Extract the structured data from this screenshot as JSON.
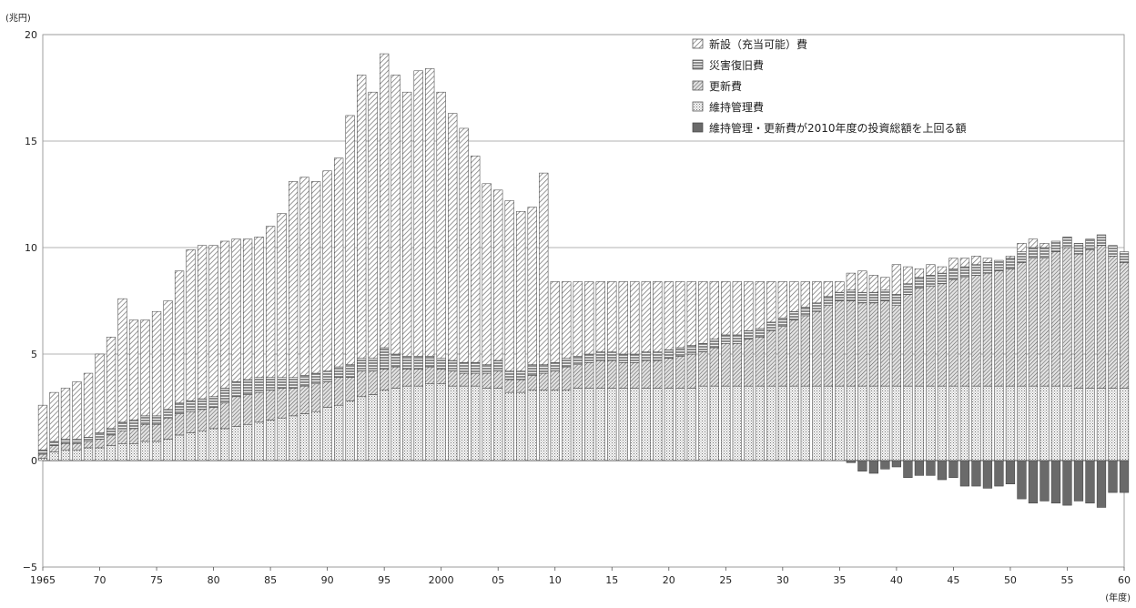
{
  "chart_data": {
    "type": "bar",
    "stacked": true,
    "ylabel": "(兆円)",
    "xlabel": "(年度)",
    "ylim": [
      -5,
      20
    ],
    "yticks": [
      -5,
      0,
      5,
      10,
      15,
      20
    ],
    "ytick_labels": [
      "−5",
      "0",
      "5",
      "10",
      "15",
      "20"
    ],
    "x_start": 1965,
    "x_end": 2060,
    "xtick_years": [
      1965,
      1970,
      1975,
      1980,
      1985,
      1990,
      1995,
      2000,
      2005,
      2010,
      2015,
      2020,
      2025,
      2030,
      2035,
      2040,
      2045,
      2050,
      2055,
      2060
    ],
    "xtick_labels": [
      "1965",
      "70",
      "75",
      "80",
      "85",
      "90",
      "95",
      "2000",
      "05",
      "10",
      "15",
      "20",
      "25",
      "30",
      "35",
      "40",
      "45",
      "50",
      "55",
      "60"
    ],
    "grid": "horizontal",
    "legend_position": "top-right",
    "legend": [
      "新設（充当可能）費",
      "災害復旧費",
      "更新費",
      "維持管理費",
      "維持管理・更新費が2010年度の投資総額を上回る額"
    ],
    "totals": [
      2.6,
      3.2,
      3.4,
      3.7,
      4.1,
      5.0,
      5.8,
      7.6,
      6.6,
      6.6,
      7.0,
      7.5,
      8.9,
      9.9,
      10.1,
      10.1,
      10.3,
      10.4,
      10.4,
      10.5,
      11.0,
      11.6,
      13.1,
      13.3,
      13.1,
      13.6,
      14.2,
      16.2,
      18.1,
      17.3,
      19.1,
      18.1,
      17.3,
      18.3,
      18.4,
      17.3,
      16.3,
      15.6,
      14.3,
      13.0,
      12.7,
      12.2,
      11.7,
      11.9,
      13.5,
      8.4,
      8.4,
      8.4,
      8.4,
      8.4,
      8.4,
      8.4,
      8.4,
      8.4,
      8.4,
      8.4,
      8.4,
      8.4,
      8.4,
      8.4,
      8.4,
      8.4,
      8.4,
      8.4,
      8.4,
      8.4,
      8.4,
      8.4,
      8.4,
      8.4,
      8.4,
      8.8,
      8.9,
      8.7,
      8.6,
      9.2,
      9.1,
      9.0,
      9.2,
      9.1,
      9.5,
      9.5,
      9.6,
      9.5,
      9.4,
      9.6,
      10.2,
      10.4,
      10.2,
      10.3,
      10.5,
      10.1,
      10.4,
      10.5,
      9.9,
      9.3
    ],
    "maintenance": [
      0.1,
      0.4,
      0.5,
      0.5,
      0.6,
      0.6,
      0.7,
      0.8,
      0.8,
      0.9,
      0.9,
      1.0,
      1.2,
      1.3,
      1.4,
      1.5,
      1.5,
      1.6,
      1.7,
      1.8,
      1.9,
      2.0,
      2.1,
      2.2,
      2.3,
      2.5,
      2.6,
      2.8,
      3.0,
      3.1,
      3.3,
      3.4,
      3.5,
      3.5,
      3.6,
      3.6,
      3.5,
      3.5,
      3.5,
      3.4,
      3.4,
      3.2,
      3.2,
      3.3,
      3.3,
      3.3,
      3.3,
      3.4,
      3.4,
      3.4,
      3.4,
      3.4,
      3.4,
      3.4,
      3.4,
      3.4,
      3.4,
      3.4,
      3.5,
      3.5,
      3.5,
      3.5,
      3.5,
      3.5,
      3.5,
      3.5,
      3.5,
      3.5,
      3.5,
      3.5,
      3.5,
      3.5,
      3.5,
      3.5,
      3.5,
      3.5,
      3.5,
      3.5,
      3.5,
      3.5,
      3.5,
      3.5,
      3.5,
      3.5,
      3.5,
      3.5,
      3.5,
      3.5,
      3.5,
      3.5,
      3.5,
      3.4,
      3.4,
      3.4,
      3.4,
      3.4
    ],
    "renewal": [
      0.2,
      0.3,
      0.3,
      0.3,
      0.3,
      0.4,
      0.5,
      0.6,
      0.7,
      0.8,
      0.8,
      1.0,
      1.0,
      1.0,
      1.0,
      1.0,
      1.2,
      1.4,
      1.4,
      1.4,
      1.4,
      1.4,
      1.3,
      1.3,
      1.3,
      1.2,
      1.3,
      1.1,
      1.2,
      1.1,
      1.0,
      1.0,
      0.8,
      0.8,
      0.8,
      0.7,
      0.7,
      0.6,
      0.6,
      0.7,
      0.8,
      0.6,
      0.6,
      0.7,
      0.8,
      0.9,
      1.1,
      1.1,
      1.2,
      1.3,
      1.3,
      1.2,
      1.2,
      1.3,
      1.3,
      1.4,
      1.5,
      1.6,
      1.6,
      1.8,
      2.0,
      2.0,
      2.2,
      2.3,
      2.6,
      2.8,
      3.1,
      3.3,
      3.5,
      3.8,
      4.0,
      4.0,
      3.9,
      3.9,
      4.0,
      3.8,
      4.3,
      4.6,
      4.7,
      4.8,
      5.0,
      5.1,
      5.2,
      5.3,
      5.4,
      5.5,
      5.8,
      6.0,
      6.0,
      6.3,
      6.5,
      6.3,
      6.5,
      6.7,
      6.2,
      5.9
    ],
    "disaster": [
      0.2,
      0.2,
      0.2,
      0.2,
      0.2,
      0.3,
      0.3,
      0.4,
      0.4,
      0.4,
      0.4,
      0.4,
      0.5,
      0.5,
      0.5,
      0.5,
      0.7,
      0.7,
      0.7,
      0.7,
      0.6,
      0.5,
      0.5,
      0.5,
      0.5,
      0.5,
      0.5,
      0.6,
      0.6,
      0.6,
      1.0,
      0.6,
      0.6,
      0.6,
      0.5,
      0.5,
      0.5,
      0.5,
      0.5,
      0.4,
      0.5,
      0.4,
      0.4,
      0.5,
      0.4,
      0.4,
      0.4,
      0.4,
      0.4,
      0.4,
      0.4,
      0.4,
      0.4,
      0.4,
      0.4,
      0.4,
      0.4,
      0.4,
      0.4,
      0.4,
      0.4,
      0.4,
      0.4,
      0.4,
      0.4,
      0.4,
      0.4,
      0.4,
      0.4,
      0.4,
      0.4,
      0.5,
      0.5,
      0.5,
      0.5,
      0.5,
      0.5,
      0.5,
      0.5,
      0.5,
      0.5,
      0.5,
      0.5,
      0.5,
      0.5,
      0.5,
      0.5,
      0.5,
      0.5,
      0.5,
      0.5,
      0.5,
      0.5,
      0.5,
      0.5,
      0.5
    ],
    "exceed": [
      0,
      0,
      0,
      0,
      0,
      0,
      0,
      0,
      0,
      0,
      0,
      0,
      0,
      0,
      0,
      0,
      0,
      0,
      0,
      0,
      0,
      0,
      0,
      0,
      0,
      0,
      0,
      0,
      0,
      0,
      0,
      0,
      0,
      0,
      0,
      0,
      0,
      0,
      0,
      0,
      0,
      0,
      0,
      0,
      0,
      0,
      0,
      0,
      0,
      0,
      0,
      0,
      0,
      0,
      0,
      0,
      0,
      0,
      0,
      0,
      0,
      0,
      0,
      0,
      0,
      0,
      0,
      0,
      0,
      0,
      0,
      -0.1,
      -0.5,
      -0.6,
      -0.4,
      -0.3,
      -0.8,
      -0.7,
      -0.7,
      -0.9,
      -0.8,
      -1.2,
      -1.2,
      -1.3,
      -1.2,
      -1.1,
      -1.8,
      -2.0,
      -1.9,
      -2.0,
      -2.1,
      -1.9,
      -2.0,
      -2.2,
      -1.5,
      -1.5
    ]
  }
}
